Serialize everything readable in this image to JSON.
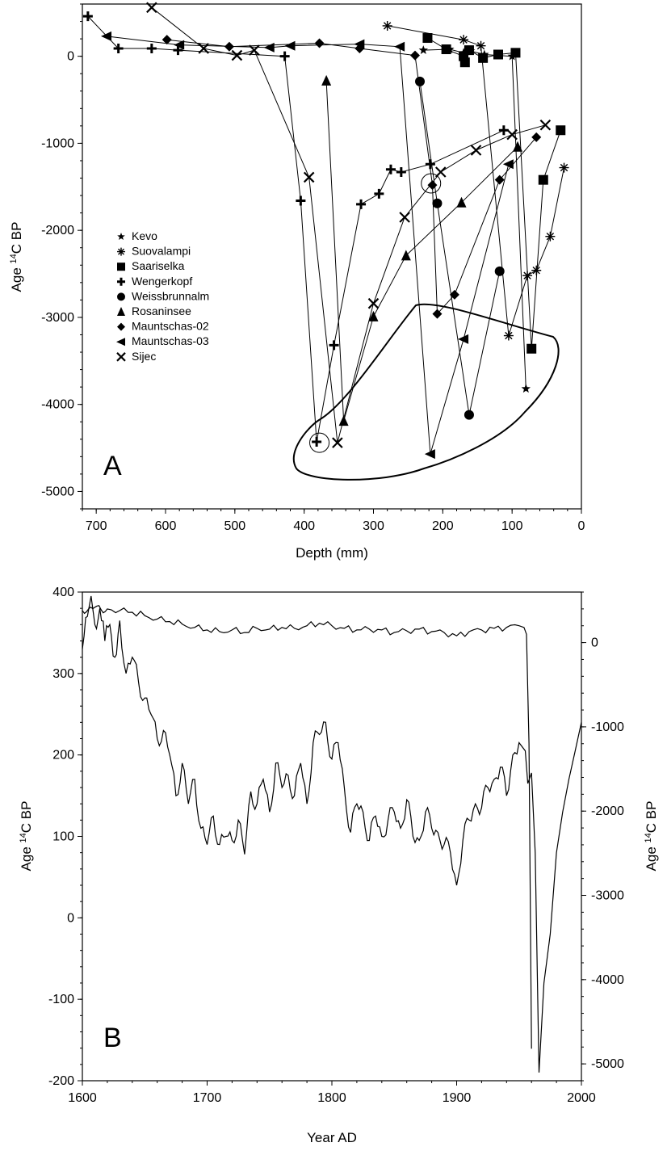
{
  "chart_data": [
    {
      "panel": "A",
      "type": "line",
      "xlabel": "Depth (mm)",
      "ylabel_prefix": "Age ",
      "ylabel_sup": "14",
      "ylabel_suffix": "C BP",
      "xlim": [
        720,
        0
      ],
      "ylim": [
        -5200,
        600
      ],
      "x_ticks": [
        700,
        600,
        500,
        400,
        300,
        200,
        100,
        0
      ],
      "y_ticks": [
        0,
        -1000,
        -2000,
        -3000,
        -4000,
        -5000
      ],
      "grid": false,
      "legend_position": "left",
      "series": [
        {
          "name": "Kevo",
          "marker": "star",
          "points": [
            [
              228,
              70
            ],
            [
              190,
              80
            ],
            [
              170,
              40
            ],
            [
              160,
              60
            ],
            [
              140,
              20
            ],
            [
              100,
              0
            ],
            [
              80,
              -3820
            ]
          ]
        },
        {
          "name": "Suovalampi",
          "marker": "asterisk",
          "points": [
            [
              280,
              350
            ],
            [
              170,
              190
            ],
            [
              145,
              120
            ],
            [
              105,
              -3210
            ],
            [
              78,
              -2520
            ],
            [
              65,
              -2460
            ],
            [
              45,
              -2070
            ],
            [
              25,
              -1280
            ]
          ]
        },
        {
          "name": "Saariselka",
          "marker": "square",
          "points": [
            [
              222,
              210
            ],
            [
              195,
              80
            ],
            [
              170,
              0
            ],
            [
              168,
              -70
            ],
            [
              162,
              70
            ],
            [
              142,
              -20
            ],
            [
              120,
              20
            ],
            [
              95,
              40
            ],
            [
              72,
              -3360
            ],
            [
              55,
              -1420
            ],
            [
              30,
              -850
            ]
          ]
        },
        {
          "name": "Wengerkopf",
          "marker": "cross",
          "points": [
            [
              712,
              460
            ],
            [
              668,
              90
            ],
            [
              620,
              90
            ],
            [
              582,
              70
            ],
            [
              428,
              0
            ],
            [
              405,
              -1660
            ],
            [
              382,
              -4430
            ],
            [
              357,
              -3320
            ],
            [
              318,
              -1700
            ],
            [
              292,
              -1580
            ],
            [
              275,
              -1300
            ],
            [
              260,
              -1330
            ],
            [
              218,
              -1240
            ],
            [
              112,
              -850
            ]
          ]
        },
        {
          "name": "Weissbrunnalm",
          "marker": "circle",
          "points": [
            [
              233,
              -290
            ],
            [
              208,
              -1690
            ],
            [
              162,
              -4120
            ],
            [
              118,
              -2470
            ]
          ]
        },
        {
          "name": "Rosaninsee",
          "marker": "triangle-up",
          "points": [
            [
              368,
              -280
            ],
            [
              343,
              -4190
            ],
            [
              300,
              -2990
            ],
            [
              253,
              -2290
            ],
            [
              173,
              -1680
            ],
            [
              92,
              -1040
            ]
          ]
        },
        {
          "name": "Mauntschas-02",
          "marker": "diamond",
          "points": [
            [
              598,
              190
            ],
            [
              508,
              110
            ],
            [
              378,
              150
            ],
            [
              320,
              90
            ],
            [
              240,
              10
            ],
            [
              215,
              -1480
            ],
            [
              208,
              -2960
            ],
            [
              183,
              -2740
            ],
            [
              118,
              -1420
            ],
            [
              65,
              -930
            ]
          ]
        },
        {
          "name": "Mauntschas-03",
          "marker": "triangle-left",
          "points": [
            [
              685,
              230
            ],
            [
              580,
              130
            ],
            [
              450,
              100
            ],
            [
              420,
              120
            ],
            [
              320,
              140
            ],
            [
              262,
              110
            ],
            [
              218,
              -4570
            ],
            [
              170,
              -3250
            ],
            [
              105,
              -1240
            ]
          ]
        },
        {
          "name": "Sijec",
          "marker": "x",
          "points": [
            [
              620,
              560
            ],
            [
              545,
              90
            ],
            [
              497,
              10
            ],
            [
              472,
              70
            ],
            [
              393,
              -1390
            ],
            [
              352,
              -4440
            ],
            [
              300,
              -2840
            ],
            [
              255,
              -1850
            ],
            [
              203,
              -1330
            ],
            [
              152,
              -1080
            ],
            [
              100,
              -900
            ],
            [
              52,
              -790
            ]
          ]
        }
      ],
      "circled_points": [
        [
          378,
          -4440
        ],
        [
          217,
          -1460
        ]
      ],
      "panel_label": "A"
    },
    {
      "panel": "B",
      "type": "line",
      "xlabel": "Year AD",
      "ylabel_left_prefix": "Age ",
      "ylabel_left_sup": "14",
      "ylabel_left_suffix": "C BP",
      "ylabel_right_prefix": "Age ",
      "ylabel_right_sup": "14",
      "ylabel_right_suffix": "C BP",
      "xlim": [
        1600,
        2000
      ],
      "ylim_left": [
        -200,
        400
      ],
      "ylim_right": [
        -5200,
        600
      ],
      "x_ticks": [
        1600,
        1700,
        1800,
        1900,
        2000
      ],
      "y_ticks_left": [
        400,
        300,
        200,
        100,
        0,
        -100,
        -200
      ],
      "y_ticks_right": [
        0,
        -1000,
        -2000,
        -3000,
        -4000,
        -5000
      ],
      "grid": false,
      "series": [
        {
          "axis": "left",
          "x": [
            1600,
            1604,
            1607,
            1610,
            1614,
            1618,
            1622,
            1626,
            1630,
            1635,
            1640,
            1645,
            1650,
            1655,
            1660,
            1665,
            1670,
            1675,
            1680,
            1685,
            1690,
            1695,
            1700,
            1705,
            1710,
            1715,
            1720,
            1725,
            1730,
            1735,
            1740,
            1745,
            1750,
            1755,
            1760,
            1765,
            1770,
            1775,
            1780,
            1785,
            1790,
            1795,
            1800,
            1805,
            1810,
            1815,
            1820,
            1825,
            1830,
            1835,
            1840,
            1845,
            1850,
            1855,
            1860,
            1865,
            1870,
            1875,
            1880,
            1885,
            1890,
            1895,
            1900,
            1905,
            1910,
            1915,
            1920,
            1925,
            1930,
            1935,
            1940,
            1945,
            1950,
            1955,
            1957,
            1960,
            1963,
            1966,
            1970,
            1975,
            1980,
            1985,
            1990,
            1995,
            2000
          ],
          "y": [
            330,
            370,
            395,
            360,
            380,
            340,
            360,
            320,
            365,
            300,
            320,
            290,
            270,
            250,
            220,
            230,
            200,
            150,
            190,
            140,
            170,
            110,
            90,
            125,
            90,
            100,
            95,
            120,
            78,
            155,
            140,
            170,
            130,
            190,
            160,
            175,
            150,
            190,
            140,
            215,
            225,
            240,
            195,
            215,
            160,
            105,
            140,
            130,
            95,
            125,
            100,
            120,
            130,
            110,
            145,
            100,
            95,
            130,
            110,
            105,
            90,
            80,
            40,
            95,
            120,
            140,
            135,
            160,
            170,
            185,
            150,
            200,
            215,
            205,
            165,
            178,
            80,
            -190,
            -80,
            -20,
            80,
            130,
            170,
            205,
            240
          ]
        },
        {
          "axis": "right",
          "x": [
            1600,
            1605,
            1610,
            1615,
            1620,
            1630,
            1640,
            1650,
            1660,
            1670,
            1680,
            1690,
            1700,
            1710,
            1720,
            1730,
            1740,
            1750,
            1760,
            1770,
            1780,
            1790,
            1800,
            1810,
            1820,
            1830,
            1840,
            1850,
            1860,
            1870,
            1880,
            1890,
            1900,
            1910,
            1920,
            1930,
            1940,
            1950,
            1954,
            1956,
            1958,
            1960
          ],
          "y": [
            380,
            400,
            420,
            390,
            400,
            380,
            360,
            320,
            280,
            250,
            220,
            180,
            150,
            130,
            150,
            120,
            170,
            160,
            180,
            170,
            200,
            230,
            200,
            170,
            150,
            160,
            150,
            120,
            140,
            160,
            130,
            120,
            80,
            130,
            150,
            170,
            180,
            200,
            180,
            100,
            -1200,
            -4820
          ]
        }
      ],
      "panel_label": "B"
    }
  ],
  "legend": {
    "items": [
      {
        "name": "Kevo",
        "symbol": "★"
      },
      {
        "name": "Suovalampi",
        "symbol": "✳"
      },
      {
        "name": "Saariselka",
        "symbol": "■"
      },
      {
        "name": "Wengerkopf",
        "symbol": "✚"
      },
      {
        "name": "Weissbrunnalm",
        "symbol": "●"
      },
      {
        "name": "Rosaninsee",
        "symbol": "▲"
      },
      {
        "name": "Mauntschas-02",
        "symbol": "◆"
      },
      {
        "name": "Mauntschas-03",
        "symbol": "◀"
      },
      {
        "name": "Sijec",
        "symbol": "✕"
      }
    ]
  }
}
